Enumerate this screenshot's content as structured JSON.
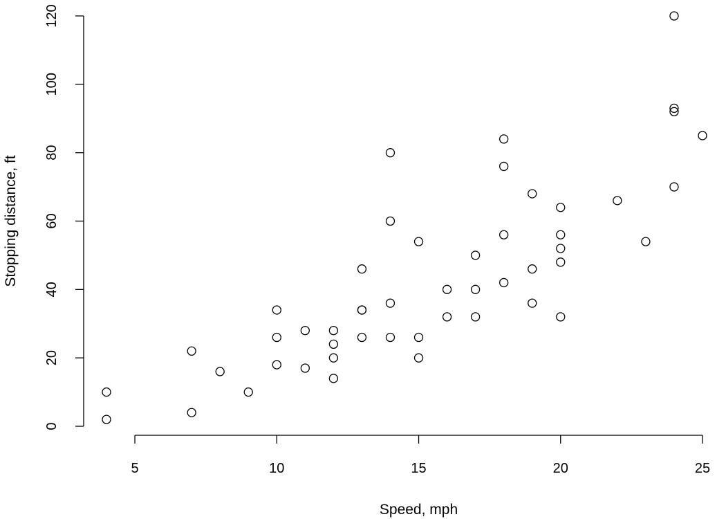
{
  "chart_data": {
    "type": "scatter",
    "title": "",
    "xlabel": "Speed, mph",
    "ylabel": "Stopping distance, ft",
    "xlim": [
      4,
      25
    ],
    "ylim": [
      0,
      120
    ],
    "x_ticks": [
      5,
      10,
      15,
      20,
      25
    ],
    "y_ticks": [
      0,
      20,
      40,
      60,
      80,
      100,
      120
    ],
    "grid": false,
    "legend": "none",
    "marker": "open-circle",
    "points": [
      {
        "x": 4,
        "y": 2
      },
      {
        "x": 4,
        "y": 10
      },
      {
        "x": 7,
        "y": 4
      },
      {
        "x": 7,
        "y": 22
      },
      {
        "x": 8,
        "y": 16
      },
      {
        "x": 9,
        "y": 10
      },
      {
        "x": 10,
        "y": 18
      },
      {
        "x": 10,
        "y": 26
      },
      {
        "x": 10,
        "y": 34
      },
      {
        "x": 11,
        "y": 17
      },
      {
        "x": 11,
        "y": 28
      },
      {
        "x": 12,
        "y": 14
      },
      {
        "x": 12,
        "y": 20
      },
      {
        "x": 12,
        "y": 24
      },
      {
        "x": 12,
        "y": 28
      },
      {
        "x": 13,
        "y": 26
      },
      {
        "x": 13,
        "y": 34
      },
      {
        "x": 13,
        "y": 34
      },
      {
        "x": 13,
        "y": 46
      },
      {
        "x": 14,
        "y": 26
      },
      {
        "x": 14,
        "y": 36
      },
      {
        "x": 14,
        "y": 60
      },
      {
        "x": 14,
        "y": 80
      },
      {
        "x": 15,
        "y": 20
      },
      {
        "x": 15,
        "y": 26
      },
      {
        "x": 15,
        "y": 54
      },
      {
        "x": 16,
        "y": 32
      },
      {
        "x": 16,
        "y": 40
      },
      {
        "x": 17,
        "y": 32
      },
      {
        "x": 17,
        "y": 40
      },
      {
        "x": 17,
        "y": 50
      },
      {
        "x": 18,
        "y": 42
      },
      {
        "x": 18,
        "y": 56
      },
      {
        "x": 18,
        "y": 76
      },
      {
        "x": 18,
        "y": 84
      },
      {
        "x": 19,
        "y": 36
      },
      {
        "x": 19,
        "y": 46
      },
      {
        "x": 19,
        "y": 68
      },
      {
        "x": 20,
        "y": 32
      },
      {
        "x": 20,
        "y": 48
      },
      {
        "x": 20,
        "y": 52
      },
      {
        "x": 20,
        "y": 56
      },
      {
        "x": 20,
        "y": 64
      },
      {
        "x": 22,
        "y": 66
      },
      {
        "x": 23,
        "y": 54
      },
      {
        "x": 24,
        "y": 70
      },
      {
        "x": 24,
        "y": 92
      },
      {
        "x": 24,
        "y": 93
      },
      {
        "x": 24,
        "y": 120
      },
      {
        "x": 25,
        "y": 85
      }
    ]
  }
}
